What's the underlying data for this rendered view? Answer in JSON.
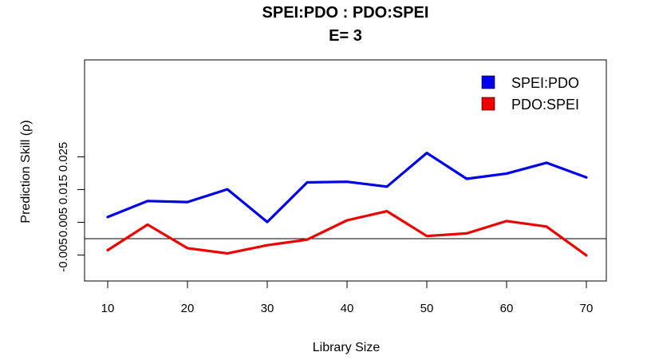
{
  "chart_data": {
    "type": "line",
    "title": "SPEI:PDO  :  PDO:SPEI",
    "subtitle": "E= 3",
    "xlabel": "Library Size",
    "ylabel": "Prediction Skill (ρ)",
    "xlim": [
      10,
      70
    ],
    "ylim": [
      -0.0055,
      0.0265
    ],
    "x_ticks": [
      10,
      20,
      30,
      40,
      50,
      60,
      70
    ],
    "x_tick_labels": [
      "10",
      "20",
      "30",
      "40",
      "50",
      "60",
      "70"
    ],
    "y_ticks": [
      -0.005,
      0.005,
      0.015,
      0.025
    ],
    "y_tick_labels": [
      "-0.005",
      "0.005",
      "0.015",
      "0.025"
    ],
    "reference_line": 0,
    "legend_position": "top-right",
    "x": [
      10,
      15,
      20,
      25,
      30,
      35,
      40,
      45,
      50,
      55,
      60,
      65,
      70
    ],
    "series": [
      {
        "name": "SPEI:PDO",
        "color": "#0000ee",
        "values": [
          0.0066,
          0.0115,
          0.0112,
          0.0151,
          0.0051,
          0.0172,
          0.0174,
          0.0159,
          0.0262,
          0.0183,
          0.0199,
          0.0232,
          0.0187
        ]
      },
      {
        "name": "PDO:SPEI",
        "color": "#ee0000",
        "values": [
          -0.0035,
          0.0043,
          -0.0029,
          -0.0045,
          -0.002,
          -0.0003,
          0.0056,
          0.0084,
          0.0008,
          0.0016,
          0.0054,
          0.0037,
          -0.0051
        ]
      }
    ]
  }
}
